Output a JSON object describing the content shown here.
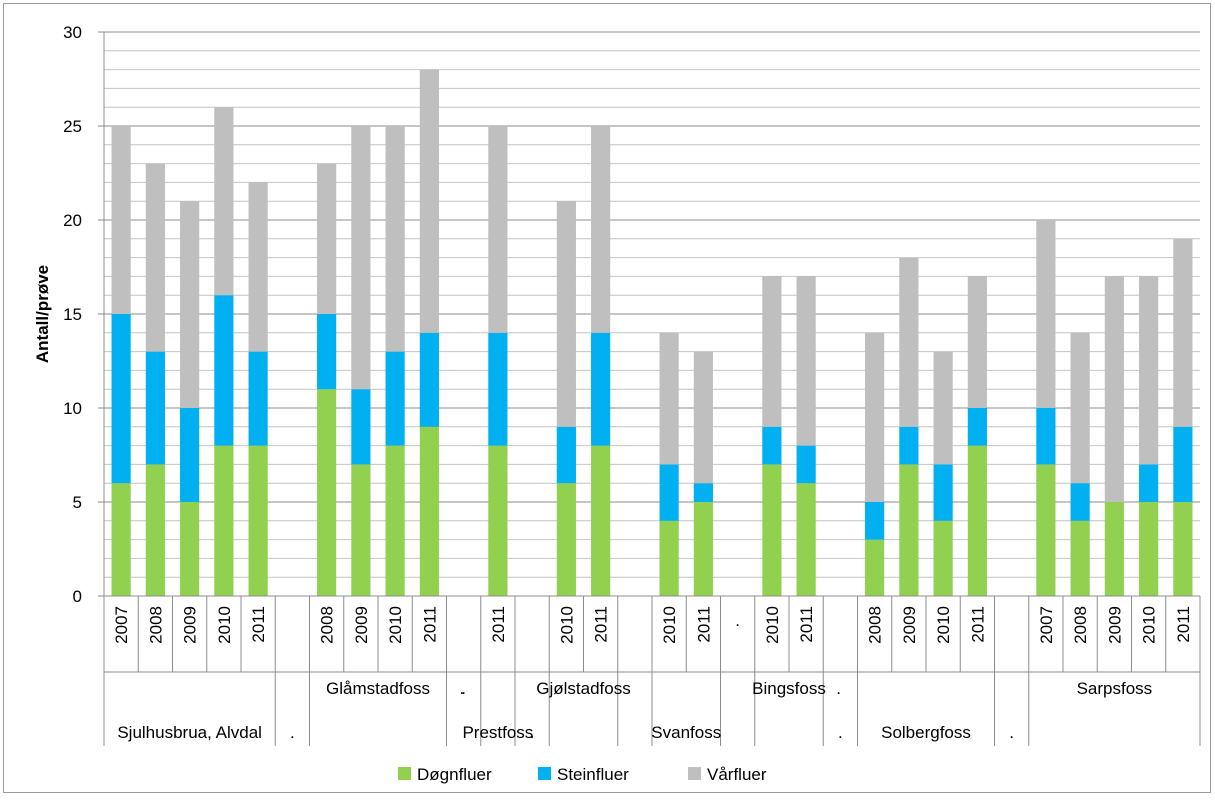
{
  "chart_data": {
    "type": "bar",
    "stacked": true,
    "title": "",
    "xlabel": "",
    "ylabel": "Antall/prøve",
    "ylim": [
      0,
      30
    ],
    "yticks": [
      0,
      5,
      10,
      15,
      20,
      25,
      30
    ],
    "grid": true,
    "legend_position": "bottom",
    "series": [
      {
        "name": "Døgnfluer",
        "color": "#92d050"
      },
      {
        "name": "Steinfluer",
        "color": "#00b0f0"
      },
      {
        "name": "Vårfluer",
        "color": "#bfbfbf"
      }
    ],
    "groups": [
      {
        "label": "Sjulhusbrua, Alvdal",
        "label_row": 2,
        "bars": [
          {
            "year": "2007",
            "values": [
              6,
              9,
              10
            ]
          },
          {
            "year": "2008",
            "values": [
              7,
              6,
              10
            ]
          },
          {
            "year": "2009",
            "values": [
              5,
              5,
              11
            ]
          },
          {
            "year": "2010",
            "values": [
              8,
              8,
              10
            ]
          },
          {
            "year": "2011",
            "values": [
              8,
              5,
              9
            ]
          }
        ]
      },
      {
        "label": ".",
        "label_row": 2,
        "bars": []
      },
      {
        "label": "Glåmstadfoss",
        "label_row": 1,
        "bars": [
          {
            "year": "2008",
            "values": [
              11,
              4,
              8
            ]
          },
          {
            "year": "2009",
            "values": [
              7,
              4,
              14
            ]
          },
          {
            "year": "2010",
            "values": [
              8,
              5,
              12
            ]
          },
          {
            "year": "2011",
            "values": [
              9,
              5,
              14
            ]
          }
        ]
      },
      {
        "label": ".",
        "label_row": 1,
        "bars": []
      },
      {
        "label": "Prestfoss",
        "label_row": 2,
        "bars": [
          {
            "year": "2011",
            "values": [
              8,
              6,
              11
            ]
          }
        ]
      },
      {
        "label": ".",
        "label_row": 2,
        "bars": []
      },
      {
        "label": "Gjølstadfoss",
        "label_row": 1,
        "bars": [
          {
            "year": "2010",
            "values": [
              6,
              3,
              12
            ]
          },
          {
            "year": "2011",
            "values": [
              8,
              6,
              11
            ]
          }
        ]
      },
      {
        "label": "",
        "label_row": 1,
        "bars": []
      },
      {
        "label": "Svanfoss",
        "label_row": 2,
        "bars": [
          {
            "year": "2010",
            "values": [
              4,
              3,
              7
            ]
          },
          {
            "year": "2011",
            "values": [
              5,
              1,
              7
            ]
          }
        ]
      },
      {
        "label": ".",
        "label_row": 0,
        "bars": []
      },
      {
        "label": "Bingsfoss",
        "label_row": 1,
        "bars": [
          {
            "year": "2010",
            "values": [
              7,
              2,
              8
            ]
          },
          {
            "year": "2011",
            "values": [
              6,
              2,
              9
            ]
          }
        ]
      },
      {
        "label": ".",
        "label_row": 2,
        "bars": []
      },
      {
        "label": "Solbergfoss",
        "label_row": 2,
        "bars": [
          {
            "year": "2008",
            "values": [
              3,
              2,
              9
            ]
          },
          {
            "year": "2009",
            "values": [
              7,
              2,
              9
            ]
          },
          {
            "year": "2010",
            "values": [
              4,
              3,
              6
            ]
          },
          {
            "year": "2011",
            "values": [
              8,
              2,
              7
            ]
          }
        ]
      },
      {
        "label": ".",
        "label_row": 2,
        "bars": []
      },
      {
        "label": "Sarpsfoss",
        "label_row": 1,
        "bars": [
          {
            "year": "2007",
            "values": [
              7,
              3,
              10
            ]
          },
          {
            "year": "2008",
            "values": [
              4,
              2,
              8
            ]
          },
          {
            "year": "2009",
            "values": [
              5,
              0,
              12
            ]
          },
          {
            "year": "2010",
            "values": [
              5,
              2,
              10
            ]
          },
          {
            "year": "2011",
            "values": [
              5,
              4,
              10
            ]
          }
        ]
      }
    ],
    "extra_dots": [
      {
        "label": ".",
        "row": 1,
        "after_group": 2
      },
      {
        "label": ".",
        "row": 1,
        "after_group": 10
      }
    ]
  }
}
